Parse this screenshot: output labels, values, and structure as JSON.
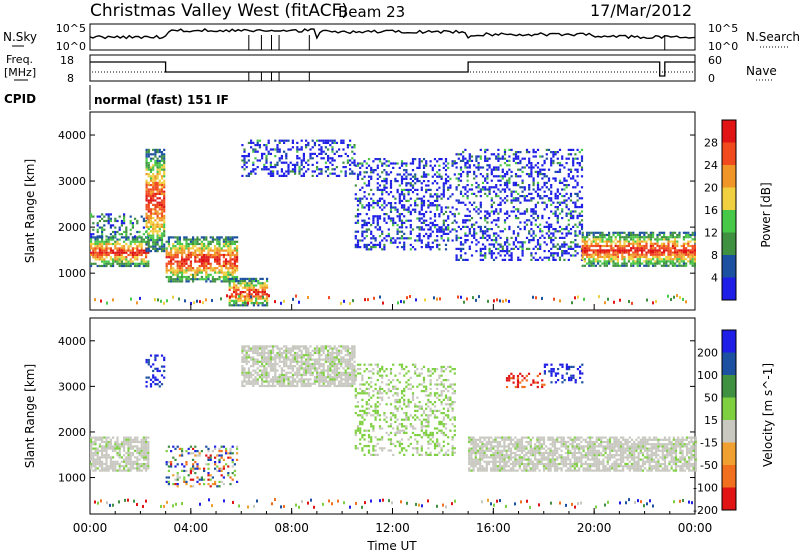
{
  "header": {
    "title": "Christmas Valley West (fitACF)",
    "beam": "Beam 23",
    "date": "17/Mar/2012"
  },
  "param_panels": {
    "noise": {
      "left_label": "N.Sky",
      "right_label": "N.Search",
      "left_ticks": [
        "10^5",
        "10^0"
      ],
      "right_ticks": [
        "10^5",
        "10^0"
      ]
    },
    "freq": {
      "left_label_top": "Freq.",
      "left_label_bottom": "[MHz]",
      "right_label": "Nave",
      "left_ticks": [
        "18",
        "8"
      ],
      "right_ticks": [
        "60",
        "0"
      ]
    },
    "cpid": {
      "label": "CPID",
      "mode_text": "normal (fast) 151 IF"
    }
  },
  "chart_data": [
    {
      "type": "heatmap",
      "name": "power",
      "ylabel": "Slant Range [km]",
      "ylim": [
        200,
        4500
      ],
      "yticks": [
        1000,
        2000,
        3000,
        4000
      ],
      "xlim": [
        0,
        24
      ],
      "colorbar": {
        "label": "Power [dB]",
        "ticks": [
          "4",
          "8",
          "12",
          "16",
          "20",
          "24",
          "28"
        ],
        "colors": [
          "#1e1ee6",
          "#1c50a0",
          "#3f9040",
          "#48c848",
          "#f0d040",
          "#f09628",
          "#f04a1e",
          "#e01414"
        ]
      },
      "echo_regions": [
        {
          "hours": [
            0.0,
            2.3
          ],
          "range_km": [
            1150,
            1800
          ],
          "level": "strong"
        },
        {
          "hours": [
            0.0,
            2.3
          ],
          "range_km": [
            1800,
            2300
          ],
          "level": "medium"
        },
        {
          "hours": [
            2.2,
            2.9
          ],
          "range_km": [
            1500,
            3700
          ],
          "level": "strong"
        },
        {
          "hours": [
            3.0,
            5.8
          ],
          "range_km": [
            800,
            1800
          ],
          "level": "strong"
        },
        {
          "hours": [
            5.5,
            7.0
          ],
          "range_km": [
            300,
            900
          ],
          "level": "strong"
        },
        {
          "hours": [
            6.0,
            10.5
          ],
          "range_km": [
            3100,
            3900
          ],
          "level": "weak"
        },
        {
          "hours": [
            10.5,
            14.5
          ],
          "range_km": [
            1500,
            3500
          ],
          "level": "weak"
        },
        {
          "hours": [
            14.5,
            19.5
          ],
          "range_km": [
            1300,
            3700
          ],
          "level": "weak"
        },
        {
          "hours": [
            19.5,
            24.0
          ],
          "range_km": [
            1150,
            1900
          ],
          "level": "strong"
        }
      ]
    },
    {
      "type": "heatmap",
      "name": "velocity",
      "ylabel": "Slant Range [km]",
      "xlabel": "Time UT",
      "ylim": [
        200,
        4500
      ],
      "yticks": [
        1000,
        2000,
        3000,
        4000
      ],
      "xlim": [
        0,
        24
      ],
      "xticks": [
        "00:00",
        "04:00",
        "08:00",
        "12:00",
        "16:00",
        "20:00",
        "00:00"
      ],
      "colorbar": {
        "label": "Velocity [m s^-1]",
        "ticks": [
          "200",
          "100",
          "50",
          "15",
          "-15",
          "-50",
          "-100",
          "-200"
        ],
        "colors": [
          "#1e1ee6",
          "#1c50a0",
          "#3f9040",
          "#7ed040",
          "#c8c8c0",
          "#f0a030",
          "#f07020",
          "#e01414"
        ]
      },
      "echo_regions": [
        {
          "hours": [
            0.0,
            2.3
          ],
          "range_km": [
            1150,
            1900
          ],
          "level": "ground"
        },
        {
          "hours": [
            2.2,
            2.9
          ],
          "range_km": [
            3000,
            3700
          ],
          "level": "toward"
        },
        {
          "hours": [
            3.0,
            5.8
          ],
          "range_km": [
            800,
            1700
          ],
          "level": "mixed"
        },
        {
          "hours": [
            6.0,
            10.5
          ],
          "range_km": [
            3000,
            3900
          ],
          "level": "ground"
        },
        {
          "hours": [
            10.5,
            14.5
          ],
          "range_km": [
            1500,
            3500
          ],
          "level": "weak-toward"
        },
        {
          "hours": [
            16.5,
            18.0
          ],
          "range_km": [
            3000,
            3300
          ],
          "level": "away"
        },
        {
          "hours": [
            18.0,
            19.5
          ],
          "range_km": [
            3100,
            3500
          ],
          "level": "toward"
        },
        {
          "hours": [
            15.0,
            24.0
          ],
          "range_km": [
            1150,
            1900
          ],
          "level": "ground"
        }
      ]
    }
  ]
}
